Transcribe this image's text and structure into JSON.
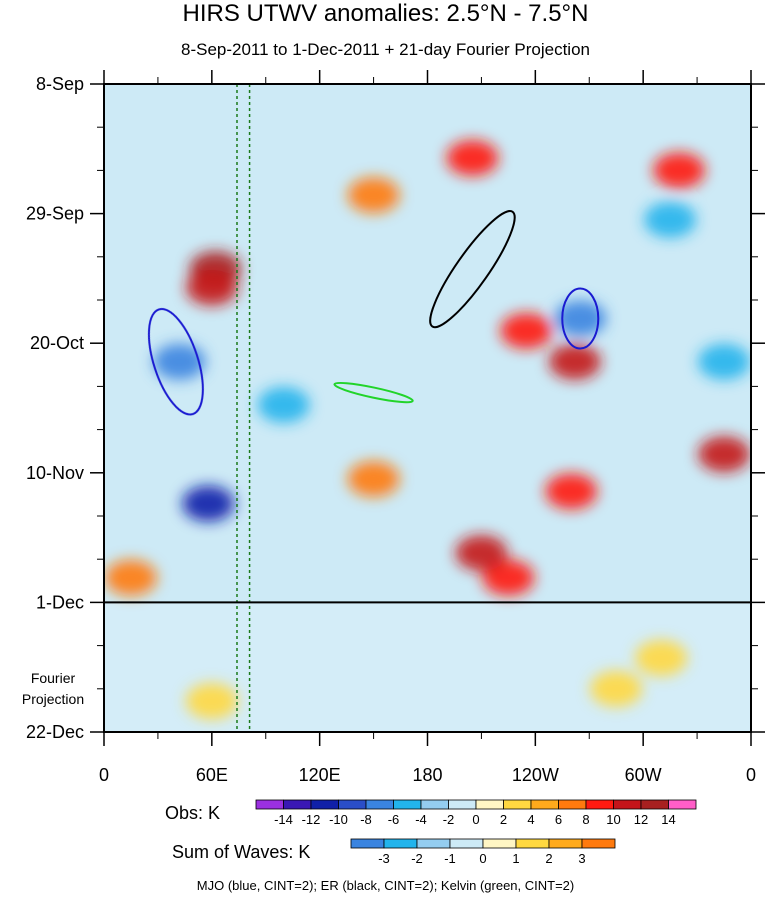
{
  "title": "HIRS UTWV anomalies: 2.5°N - 7.5°N",
  "subtitle": "8-Sep-2011 to 1-Dec-2011 + 21-day Fourier Projection",
  "projection_label_line1": "Fourier",
  "projection_label_line2": "Projection",
  "credit": "MJO (blue, CINT=2); ER (black, CINT=2); Kelvin (green, CINT=2)",
  "obs_colorbar": {
    "label": "Obs: K",
    "ticks": [
      "-14",
      "-12",
      "-10",
      "-8",
      "-6",
      "-4",
      "-2",
      "0",
      "2",
      "4",
      "6",
      "8",
      "10",
      "12",
      "14"
    ],
    "colors": [
      "#9b30e0",
      "#3a18b4",
      "#1020a8",
      "#2a4ec8",
      "#3a84e0",
      "#22b4ec",
      "#94cdf0",
      "#cdeaf6",
      "#fff6c4",
      "#ffd840",
      "#ffaa1c",
      "#ff7a0e",
      "#ff1a10",
      "#c4141a",
      "#a82020",
      "#ff5ec8"
    ]
  },
  "waves_colorbar": {
    "label": "Sum of Waves: K",
    "ticks": [
      "-3",
      "-2",
      "-1",
      "0",
      "1",
      "2",
      "3"
    ],
    "colors": [
      "#3a84e0",
      "#22b4ec",
      "#94cdf0",
      "#cdeaf6",
      "#fff6c4",
      "#ffd840",
      "#ffaa1c",
      "#ff7a0e"
    ]
  },
  "chart_data": {
    "type": "heatmap",
    "title": "HIRS UTWV anomalies: 2.5°N - 7.5°N",
    "subtitle": "8-Sep-2011 to 1-Dec-2011 + 21-day Fourier Projection",
    "x_ticks": [
      {
        "lon": 0,
        "label": "0"
      },
      {
        "lon": 60,
        "label": "60E"
      },
      {
        "lon": 120,
        "label": "120E"
      },
      {
        "lon": 180,
        "label": "180"
      },
      {
        "lon": 240,
        "label": "120W"
      },
      {
        "lon": 300,
        "label": "60W"
      },
      {
        "lon": 360,
        "label": "0"
      }
    ],
    "x_range": [
      0,
      360
    ],
    "y_ticks": [
      {
        "day": 0,
        "label": "8-Sep"
      },
      {
        "day": 21,
        "label": "29-Sep"
      },
      {
        "day": 42,
        "label": "20-Oct"
      },
      {
        "day": 63,
        "label": "10-Nov"
      },
      {
        "day": 84,
        "label": "1-Dec"
      },
      {
        "day": 105,
        "label": "22-Dec"
      }
    ],
    "y_range_days": [
      0,
      105
    ],
    "observation_end_day": 84,
    "reference_lines_lon": [
      74,
      81
    ],
    "series": [
      {
        "name": "MJO",
        "color": "blue",
        "cint": 2
      },
      {
        "name": "ER",
        "color": "black",
        "cint": 2
      },
      {
        "name": "Kelvin",
        "color": "green",
        "cint": 2
      }
    ],
    "anomaly_features": [
      {
        "lon": 62,
        "day": 30,
        "value": 12
      },
      {
        "lon": 60,
        "day": 33,
        "value": 10
      },
      {
        "lon": 58,
        "day": 68,
        "value": -12
      },
      {
        "lon": 42,
        "day": 45,
        "value": -8
      },
      {
        "lon": 60,
        "day": 100,
        "value": 3
      },
      {
        "lon": 205,
        "day": 12,
        "value": 8
      },
      {
        "lon": 150,
        "day": 18,
        "value": 6
      },
      {
        "lon": 235,
        "day": 40,
        "value": 8
      },
      {
        "lon": 262,
        "day": 45,
        "value": 10
      },
      {
        "lon": 260,
        "day": 66,
        "value": 8
      },
      {
        "lon": 225,
        "day": 80,
        "value": 8
      },
      {
        "lon": 210,
        "day": 76,
        "value": 10
      },
      {
        "lon": 265,
        "day": 38,
        "value": -8
      },
      {
        "lon": 315,
        "day": 22,
        "value": -6
      },
      {
        "lon": 320,
        "day": 14,
        "value": 8
      },
      {
        "lon": 150,
        "day": 64,
        "value": 6
      },
      {
        "lon": 100,
        "day": 52,
        "value": -6
      },
      {
        "lon": 345,
        "day": 45,
        "value": -6
      },
      {
        "lon": 345,
        "day": 60,
        "value": 10
      },
      {
        "lon": 310,
        "day": 93,
        "value": 2
      },
      {
        "lon": 285,
        "day": 98,
        "value": 2
      },
      {
        "lon": 15,
        "day": 80,
        "value": 6
      }
    ]
  }
}
